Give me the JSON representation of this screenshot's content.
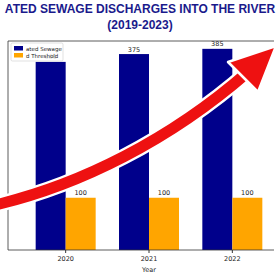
{
  "chart_data": {
    "type": "bar",
    "title": "ATED SEWAGE DISCHARGES INTO THE RIVER",
    "subtitle": "(2019-2023)",
    "x_label": "Year",
    "categories": [
      "2020",
      "2021",
      "2022"
    ],
    "series": [
      {
        "name": "ated Sewage",
        "color": "#00008b",
        "values": [
          360,
          375,
          385
        ]
      },
      {
        "name": "d Threshold",
        "color": "#ffa500",
        "values": [
          100,
          100,
          100
        ]
      }
    ],
    "ylim": [
      0,
      400
    ],
    "tick_labels": "x",
    "data_labels": true,
    "legend": "upper left"
  }
}
